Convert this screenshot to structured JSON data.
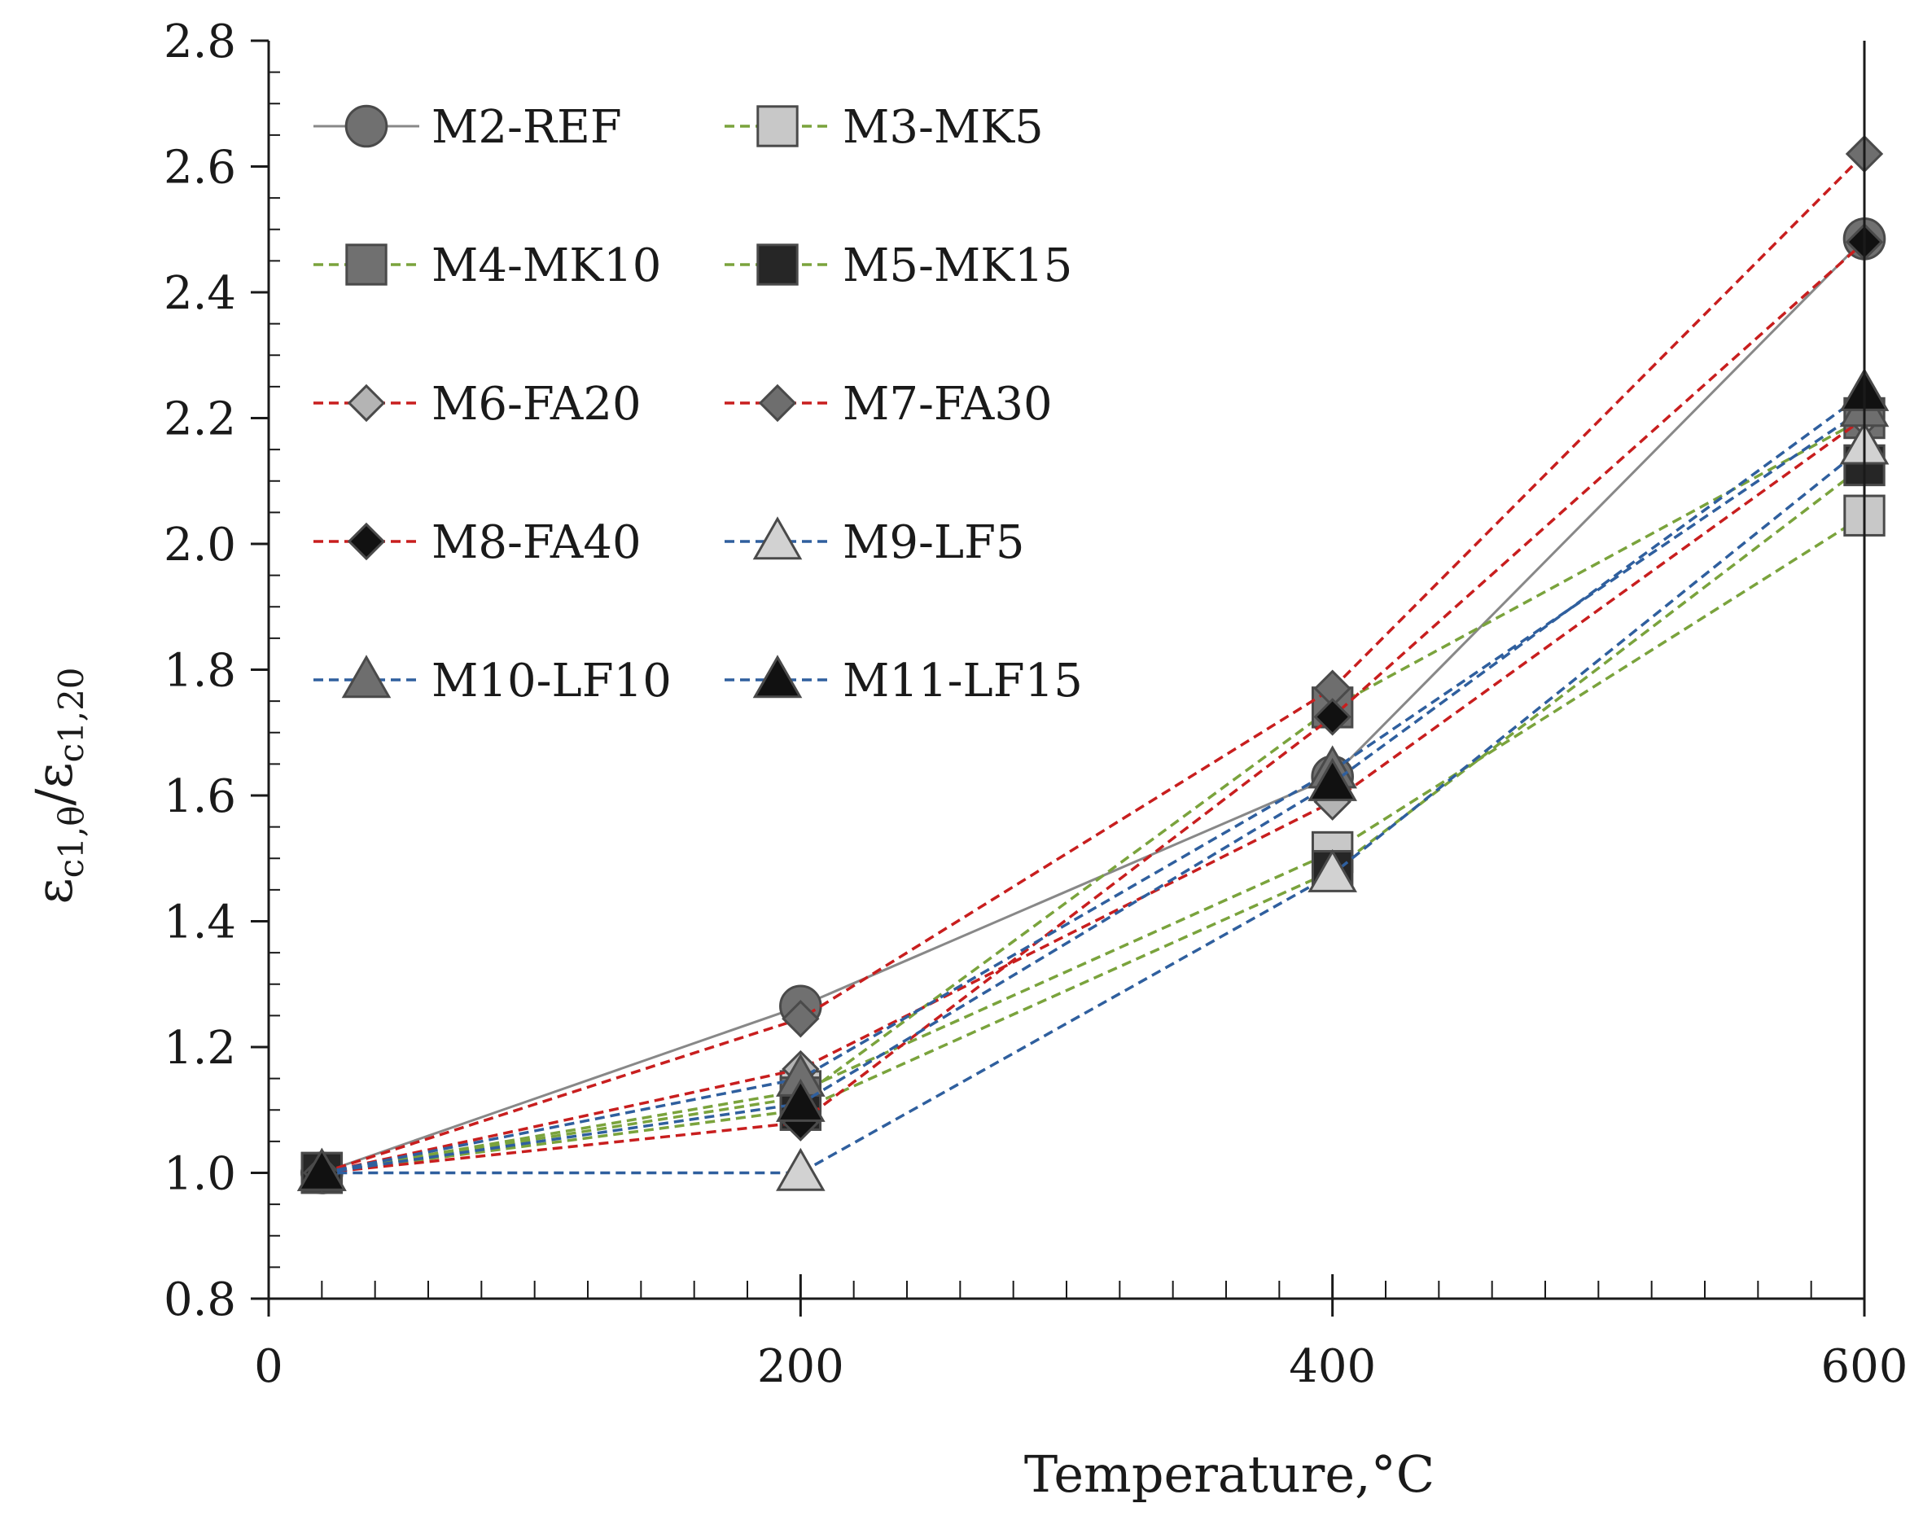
{
  "chart_data": {
    "type": "line",
    "title": "",
    "xlabel": "Temperature,°C",
    "ylabel_main": "ε",
    "ylabel_sub_num": "c1,θ",
    "ylabel_sep": "/",
    "ylabel_sub_den": "c1,20",
    "xlim": [
      0,
      600
    ],
    "ylim": [
      0.8,
      2.8
    ],
    "xticks": [
      0,
      200,
      400,
      600
    ],
    "xtick_labels": [
      "0",
      "200",
      "400",
      "600"
    ],
    "yticks": [
      0.8,
      1.0,
      1.2,
      1.4,
      1.6,
      1.8,
      2.0,
      2.2,
      2.4,
      2.6,
      2.8
    ],
    "ytick_labels": [
      "0.8",
      "1.0",
      "1.2",
      "1.4",
      "1.6",
      "1.8",
      "2.0",
      "2.2",
      "2.4",
      "2.6",
      "2.8"
    ],
    "x": [
      20,
      200,
      400,
      600
    ],
    "legend_position": "top-left",
    "colors": {
      "ref_line": "#888888",
      "mk_line": "#7aa33c",
      "fa_line": "#c81e1e",
      "lf_line": "#2f5f9e",
      "axis": "#1a1a1a"
    },
    "series": [
      {
        "name": "M2-REF",
        "values": [
          1.0,
          1.265,
          1.63,
          2.485
        ],
        "line": "solid",
        "color": "#888888",
        "marker": "circle",
        "fill": "#707070"
      },
      {
        "name": "M3-MK5",
        "values": [
          1.0,
          1.13,
          1.51,
          2.045
        ],
        "line": "dashed",
        "color": "#7aa33c",
        "marker": "square",
        "fill": "#c8c8c8"
      },
      {
        "name": "M4-MK10",
        "values": [
          1.0,
          1.12,
          1.74,
          2.2
        ],
        "line": "dashed",
        "color": "#7aa33c",
        "marker": "square",
        "fill": "#707070"
      },
      {
        "name": "M5-MK15",
        "values": [
          1.0,
          1.1,
          1.48,
          2.125
        ],
        "line": "dashed",
        "color": "#7aa33c",
        "marker": "square",
        "fill": "#262626"
      },
      {
        "name": "M6-FA20",
        "values": [
          1.0,
          1.165,
          1.59,
          2.2
        ],
        "line": "dashed",
        "color": "#c81e1e",
        "marker": "diamond",
        "fill": "#b4b4b4"
      },
      {
        "name": "M7-FA30",
        "values": [
          1.0,
          1.245,
          1.77,
          2.62
        ],
        "line": "dashed",
        "color": "#c81e1e",
        "marker": "diamond",
        "fill": "#6e6e6e"
      },
      {
        "name": "M8-FA40",
        "values": [
          1.0,
          1.08,
          1.725,
          2.48
        ],
        "line": "dashed",
        "color": "#c81e1e",
        "marker": "diamond",
        "fill": "#111111"
      },
      {
        "name": "M9-LF5",
        "values": [
          1.0,
          1.0,
          1.475,
          2.155
        ],
        "line": "dashed",
        "color": "#2f5f9e",
        "marker": "triangle",
        "fill": "#d2d2d2"
      },
      {
        "name": "M10-LF10",
        "values": [
          1.0,
          1.15,
          1.64,
          2.215
        ],
        "line": "dashed",
        "color": "#2f5f9e",
        "marker": "triangle",
        "fill": "#6e6e6e"
      },
      {
        "name": "M11-LF15",
        "values": [
          1.0,
          1.11,
          1.62,
          2.24
        ],
        "line": "dashed",
        "color": "#2f5f9e",
        "marker": "triangle",
        "fill": "#111111"
      }
    ]
  }
}
